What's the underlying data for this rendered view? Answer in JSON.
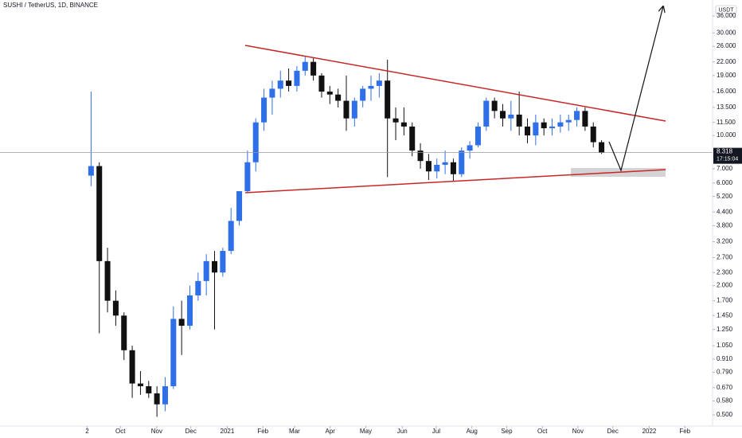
{
  "chart_data": {
    "type": "candlestick",
    "title": "SUSHI / TetherUS, 1D, BINANCE",
    "currency": "USDT",
    "countdown": "17:15:04",
    "last_price": 8.318,
    "log_scale": true,
    "up_color": "#2f6fe8",
    "down_color": "#111111",
    "open": [
      6.5,
      7.2,
      2.6,
      1.7,
      1.45,
      1.0,
      0.7,
      0.68,
      0.63,
      0.56,
      0.68,
      1.4,
      1.3,
      1.8,
      2.1,
      2.6,
      2.3,
      2.9,
      4.0,
      5.5,
      7.5,
      11.5,
      15,
      16.5,
      18,
      17,
      20,
      22,
      19,
      16,
      15.5,
      14.5,
      12,
      14.5,
      16.5,
      17,
      18,
      12,
      11.5,
      11,
      8.5,
      7.6,
      6.8,
      7.3,
      7.5,
      6.6,
      8.5,
      9.0,
      11,
      14.5,
      13,
      12,
      12.5,
      11,
      10,
      11.5,
      10.8,
      11,
      11.5,
      11.8,
      13,
      11,
      9.3
    ],
    "high": [
      16,
      7.5,
      3.0,
      1.9,
      1.5,
      1.05,
      0.8,
      0.72,
      0.68,
      0.75,
      1.6,
      1.7,
      2.0,
      2.3,
      2.8,
      2.9,
      3.0,
      4.6,
      5.5,
      8.5,
      12,
      16.5,
      18,
      20,
      20.5,
      21,
      23.5,
      23,
      19.5,
      17,
      16.5,
      19,
      15,
      17,
      19,
      19.5,
      22.5,
      13.5,
      13.5,
      11.5,
      9.2,
      8.2,
      7.8,
      8.5,
      7.8,
      8.8,
      9.4,
      11.5,
      15,
      15,
      14,
      14.5,
      16,
      12,
      12.5,
      12,
      12,
      12.5,
      12.5,
      13.5,
      13.5,
      11.5,
      9.5
    ],
    "low": [
      5.8,
      1.2,
      1.5,
      1.3,
      0.9,
      0.6,
      0.62,
      0.6,
      0.49,
      0.52,
      0.66,
      0.95,
      1.25,
      1.7,
      1.8,
      1.25,
      2.2,
      2.8,
      3.8,
      5.4,
      6.8,
      10.5,
      12.5,
      15,
      16,
      16,
      19,
      18,
      15,
      14,
      13.5,
      10.5,
      11,
      13.5,
      14.5,
      15,
      6.4,
      9.5,
      10,
      8.0,
      7.0,
      6.2,
      6.3,
      6.6,
      6.1,
      6.4,
      7.8,
      8.8,
      10.5,
      12,
      11,
      10.5,
      10,
      9.2,
      9.0,
      10,
      10,
      10.3,
      10.5,
      11,
      10.5,
      8.8,
      8.2
    ],
    "close": [
      7.2,
      2.6,
      1.7,
      1.45,
      1.0,
      0.7,
      0.68,
      0.63,
      0.56,
      0.68,
      1.4,
      1.3,
      1.8,
      2.1,
      2.6,
      2.3,
      2.9,
      4.0,
      5.5,
      7.5,
      11.5,
      15,
      16.5,
      18,
      17,
      20,
      22,
      19,
      16,
      15.5,
      14.5,
      12,
      14.5,
      16.5,
      17,
      18,
      12,
      11.5,
      11,
      8.5,
      7.6,
      6.8,
      7.3,
      7.5,
      6.6,
      8.5,
      9.0,
      11,
      14.5,
      13,
      12,
      12.5,
      11,
      10,
      11.5,
      10.8,
      11,
      11.5,
      11.8,
      13,
      11,
      9.3,
      8.318
    ],
    "xlim": [
      -11.06,
      75.48
    ],
    "xticks": [
      {
        "value": -0.48,
        "label": "2"
      },
      {
        "value": 3.56,
        "label": "Oct"
      },
      {
        "value": 7.98,
        "label": "Nov"
      },
      {
        "value": 12.12,
        "label": "Dec"
      },
      {
        "value": 16.54,
        "label": "2021"
      },
      {
        "value": 20.87,
        "label": "Feb"
      },
      {
        "value": 24.71,
        "label": "Mar"
      },
      {
        "value": 29.04,
        "label": "Apr"
      },
      {
        "value": 33.37,
        "label": "May"
      },
      {
        "value": 37.79,
        "label": "Jun"
      },
      {
        "value": 41.92,
        "label": "Jul"
      },
      {
        "value": 46.25,
        "label": "Aug"
      },
      {
        "value": 50.48,
        "label": "Sep"
      },
      {
        "value": 54.81,
        "label": "Oct"
      },
      {
        "value": 59.13,
        "label": "Nov"
      },
      {
        "value": 63.37,
        "label": "Dec"
      },
      {
        "value": 67.79,
        "label": "2022"
      },
      {
        "value": 72.12,
        "label": "Feb"
      }
    ],
    "ylim": [
      0.4437,
      42.7
    ],
    "yticks": [
      {
        "value": 36,
        "label": "36.000"
      },
      {
        "value": 30,
        "label": "30.000"
      },
      {
        "value": 26,
        "label": "26.000"
      },
      {
        "value": 22,
        "label": "22.000"
      },
      {
        "value": 19,
        "label": "19.000"
      },
      {
        "value": 16,
        "label": "16.000"
      },
      {
        "value": 13.5,
        "label": "13.500"
      },
      {
        "value": 11.5,
        "label": "11.500"
      },
      {
        "value": 10,
        "label": "10.000"
      },
      {
        "value": 7,
        "label": "7.000"
      },
      {
        "value": 6,
        "label": "6.000"
      },
      {
        "value": 5.2,
        "label": "5.200"
      },
      {
        "value": 4.4,
        "label": "4.400"
      },
      {
        "value": 3.8,
        "label": "3.800"
      },
      {
        "value": 3.2,
        "label": "3.200"
      },
      {
        "value": 2.7,
        "label": "2.700"
      },
      {
        "value": 2.3,
        "label": "2.300"
      },
      {
        "value": 2,
        "label": "2.000"
      },
      {
        "value": 1.7,
        "label": "1.700"
      },
      {
        "value": 1.45,
        "label": "1.450"
      },
      {
        "value": 1.25,
        "label": "1.250"
      },
      {
        "value": 1.05,
        "label": "1.050"
      },
      {
        "value": 0.91,
        "label": "0.910"
      },
      {
        "value": 0.79,
        "label": "0.790"
      },
      {
        "value": 0.67,
        "label": "0.670"
      },
      {
        "value": 0.58,
        "label": "0.580"
      },
      {
        "value": 0.5,
        "label": "0.500"
      }
    ]
  }
}
